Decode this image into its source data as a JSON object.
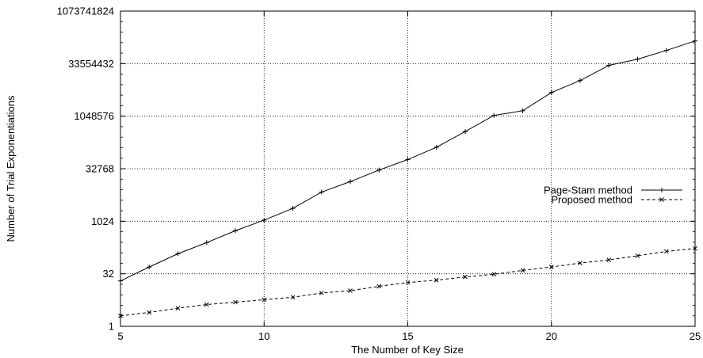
{
  "chart_data": {
    "type": "line",
    "title": "",
    "xlabel": "The Number of Key Size",
    "ylabel": "Number of Trial Exponentiations",
    "xlim": [
      5,
      25
    ],
    "ylim": [
      1,
      1073741824
    ],
    "yscale": "log2",
    "grid": true,
    "legend_position": "right",
    "xticks": [
      5,
      10,
      15,
      20,
      25
    ],
    "xtick_labels": [
      "5",
      "10",
      "15",
      "20",
      "25"
    ],
    "yticks": [
      1,
      32,
      1024,
      32768,
      1048576,
      33554432,
      1073741824
    ],
    "ytick_labels": [
      "1",
      "32",
      "1024",
      "32768",
      "1048576",
      "33554432",
      "1073741824"
    ],
    "x": [
      5,
      6,
      7,
      8,
      9,
      10,
      11,
      12,
      13,
      14,
      15,
      16,
      17,
      18,
      19,
      20,
      21,
      22,
      23,
      24,
      25
    ],
    "series": [
      {
        "name": "Page-Stam method",
        "marker": "plus",
        "line_style": "solid",
        "values": [
          20,
          50,
          120,
          250,
          550,
          1100,
          2400,
          7000,
          14000,
          30000,
          60000,
          135000,
          380000,
          1100000,
          1500000,
          5000000,
          11000000,
          30000000,
          45000000,
          80000000,
          150000000
        ]
      },
      {
        "name": "Proposed method",
        "marker": "cross",
        "line_style": "dashed",
        "values": [
          2,
          2.5,
          3.3,
          4.2,
          4.9,
          5.8,
          6.8,
          9,
          10.5,
          14,
          18,
          21,
          26,
          31,
          40,
          50,
          65,
          80,
          105,
          140,
          170
        ]
      }
    ]
  }
}
